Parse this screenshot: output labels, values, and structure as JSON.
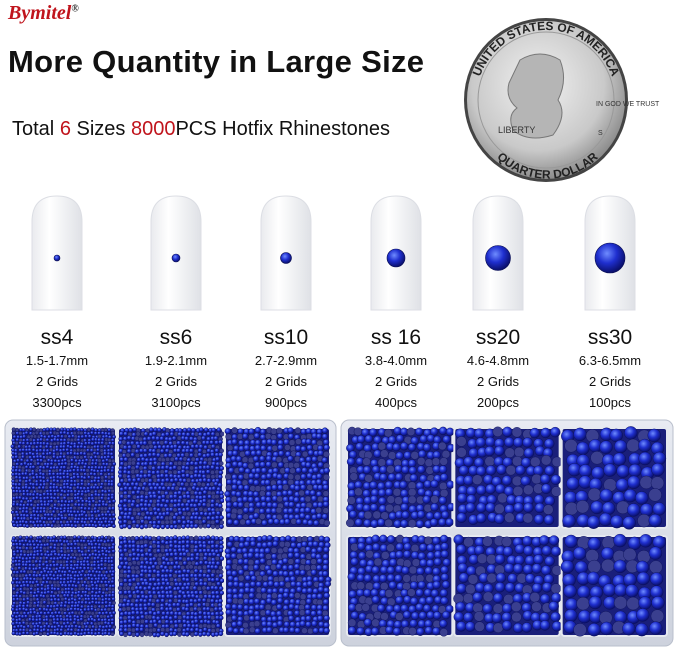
{
  "brand": {
    "name": "Bymitel",
    "mark": "®"
  },
  "title": "More Quantity in Large Size",
  "subtitle": {
    "lead": "Total",
    "sizes_count": "6",
    "middle": "Sizes",
    "total": "8000",
    "tail": "PCS Hotfix Rhinestones"
  },
  "coin": {
    "top": "UNITED STATES OF AMERICA",
    "liberty": "LIBERTY",
    "motto": "IN GOD WE TRUST",
    "mint": "S",
    "bottom": "QUARTER DOLLAR"
  },
  "sizes": [
    {
      "name": "ss4",
      "range": "1.5-1.7mm",
      "grids": "2 Grids",
      "count": "3300pcs"
    },
    {
      "name": "ss6",
      "range": "1.9-2.1mm",
      "grids": "2 Grids",
      "count": "3100pcs"
    },
    {
      "name": "ss10",
      "range": "2.7-2.9mm",
      "grids": "2 Grids",
      "count": "900pcs"
    },
    {
      "name": "ss 16",
      "range": "3.8-4.0mm",
      "grids": "2 Grids",
      "count": "400pcs"
    },
    {
      "name": "ss20",
      "range": "4.6-4.8mm",
      "grids": "2 Grids",
      "count": "200pcs"
    },
    {
      "name": "ss30",
      "range": "6.3-6.5mm",
      "grids": "2 Grids",
      "count": "100pcs"
    }
  ]
}
